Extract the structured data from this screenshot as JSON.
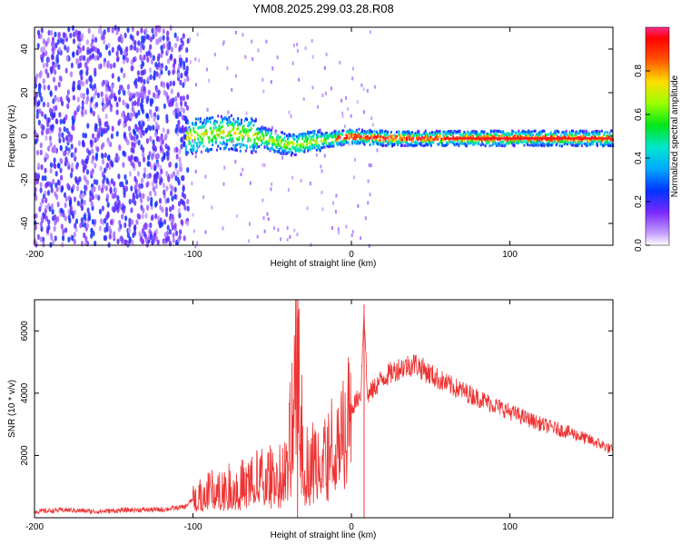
{
  "title": "YM08.2025.299.03.28.R08",
  "chart_data": [
    {
      "type": "heatmap",
      "title": "YM08.2025.299.03.28.R08",
      "xlabel": "Height of straight line (km)",
      "ylabel": "Frequency (Hz)",
      "xlim": [
        -200,
        165
      ],
      "ylim": [
        -50,
        50
      ],
      "xticks": [
        -200,
        -100,
        0,
        100
      ],
      "yticks": [
        -40,
        -20,
        0,
        20,
        40
      ],
      "colorbar": {
        "label": "Normalized spectral amplitude",
        "range": [
          0,
          1
        ],
        "ticks": [
          0.0,
          0.2,
          0.4,
          0.6,
          0.8
        ]
      },
      "regions": [
        {
          "name": "noise-scatter",
          "x": [
            -200,
            -103
          ],
          "freq": [
            -50,
            50
          ],
          "amplitude": [
            0.05,
            0.25
          ]
        },
        {
          "name": "signal-band",
          "x": [
            -105,
            165
          ],
          "center_freq": [
            [
              -100,
              0
            ],
            [
              -80,
              2
            ],
            [
              -60,
              0
            ],
            [
              -40,
              -4
            ],
            [
              -20,
              -2
            ],
            [
              0,
              0
            ],
            [
              20,
              -1
            ],
            [
              60,
              -1
            ],
            [
              100,
              -1
            ],
            [
              165,
              -1
            ]
          ],
          "amplitude_peak": 1.0
        }
      ]
    },
    {
      "type": "line",
      "xlabel": "Height of straight line (km)",
      "ylabel": "SNR (10 * v/v)",
      "xlim": [
        -200,
        165
      ],
      "ylim": [
        0,
        7000
      ],
      "xticks": [
        -200,
        -100,
        0,
        100
      ],
      "yticks": [
        2000,
        4000,
        6000
      ],
      "color": "#ee3333",
      "series": [
        {
          "name": "SNR",
          "x": [
            -200,
            -180,
            -160,
            -140,
            -120,
            -105,
            -100,
            -90,
            -80,
            -70,
            -60,
            -50,
            -40,
            -34,
            -30,
            -20,
            -10,
            -5,
            0,
            6,
            8,
            10,
            20,
            30,
            40,
            50,
            60,
            80,
            100,
            120,
            140,
            160,
            165
          ],
          "values": [
            200,
            250,
            200,
            250,
            260,
            350,
            600,
            900,
            1000,
            1100,
            1300,
            1400,
            1600,
            6450,
            1800,
            2000,
            2500,
            3100,
            3500,
            4000,
            6850,
            3900,
            4500,
            4800,
            4950,
            4600,
            4300,
            3850,
            3400,
            3000,
            2700,
            2300,
            2150
          ]
        }
      ]
    }
  ]
}
